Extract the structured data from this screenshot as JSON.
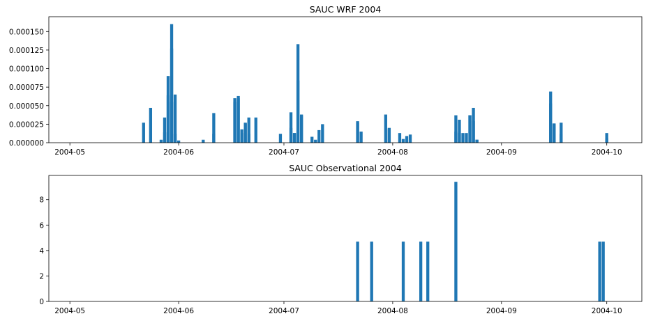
{
  "colors": {
    "bar": "#1f77b4",
    "axes": "#000000",
    "background": "#ffffff"
  },
  "chart_data": [
    {
      "type": "bar",
      "title": "SAUC WRF 2004",
      "xlabel": "",
      "ylabel": "",
      "grid": false,
      "xlim": [
        "2004-04-25",
        "2004-10-11"
      ],
      "ylim": [
        0,
        0.00017
      ],
      "xticks": [
        "2004-05",
        "2004-06",
        "2004-07",
        "2004-08",
        "2004-09",
        "2004-10"
      ],
      "xtick_dates": [
        "2004-05-01",
        "2004-06-01",
        "2004-07-01",
        "2004-08-01",
        "2004-09-01",
        "2004-10-01"
      ],
      "yticks": [
        "0.000000",
        "0.000025",
        "0.000050",
        "0.000075",
        "0.000100",
        "0.000125",
        "0.000150"
      ],
      "ytick_values": [
        0,
        2.5e-05,
        5e-05,
        7.5e-05,
        0.0001,
        0.000125,
        0.00015
      ],
      "series": [
        {
          "x": [
            "2004-05-22",
            "2004-05-24",
            "2004-05-27",
            "2004-05-28",
            "2004-05-28",
            "2004-05-29",
            "2004-05-29",
            "2004-05-30",
            "2004-05-30",
            "2004-05-30",
            "2004-05-31",
            "2004-05-31",
            "2004-06-01",
            "2004-06-08",
            "2004-06-11",
            "2004-06-11",
            "2004-06-17",
            "2004-06-17",
            "2004-06-18",
            "2004-06-18",
            "2004-06-19",
            "2004-06-19",
            "2004-06-20",
            "2004-06-20",
            "2004-06-21",
            "2004-06-21",
            "2004-06-23",
            "2004-06-30",
            "2004-07-03",
            "2004-07-03",
            "2004-07-04",
            "2004-07-04",
            "2004-07-05",
            "2004-07-05",
            "2004-07-06",
            "2004-07-06",
            "2004-07-09",
            "2004-07-10",
            "2004-07-11",
            "2004-07-12",
            "2004-07-22",
            "2004-07-22",
            "2004-07-23",
            "2004-07-30",
            "2004-07-31",
            "2004-07-31",
            "2004-08-03",
            "2004-08-04",
            "2004-08-05",
            "2004-08-06",
            "2004-08-19",
            "2004-08-19",
            "2004-08-20",
            "2004-08-20",
            "2004-08-21",
            "2004-08-22",
            "2004-08-23",
            "2004-08-23",
            "2004-08-24",
            "2004-08-24",
            "2004-08-25",
            "2004-08-25",
            "2004-09-15",
            "2004-09-15",
            "2004-09-16",
            "2004-09-16",
            "2004-09-18",
            "2004-09-18",
            "2004-10-01",
            "2004-10-01"
          ],
          "values": [
            2.7e-05,
            4.7e-05,
            4e-06,
            1.4e-05,
            3.4e-05,
            6.4e-05,
            9e-05,
            5.5e-05,
            0.00016,
            0.000127,
            6.5e-05,
            1.2e-05,
            3e-06,
            4e-06,
            1.2e-05,
            4e-05,
            6e-05,
            5.5e-05,
            6e-05,
            6.3e-05,
            1.3e-05,
            1.8e-05,
            2.6e-05,
            2.7e-05,
            3.4e-05,
            1.2e-05,
            3.4e-05,
            1.2e-05,
            2e-05,
            4.1e-05,
            1.3e-05,
            1.3e-05,
            0.000133,
            8.4e-05,
            3.8e-05,
            3.7e-05,
            8e-06,
            4e-06,
            1.7e-05,
            2.5e-05,
            2.7e-05,
            2.9e-05,
            1.5e-05,
            3.8e-05,
            1.8e-05,
            2e-05,
            1.3e-05,
            5e-06,
            9e-06,
            1.1e-05,
            1.5e-05,
            3.7e-05,
            3.1e-05,
            1.3e-05,
            1.3e-05,
            1.3e-05,
            3.7e-05,
            3.7e-05,
            4.7e-05,
            2.9e-05,
            4e-06,
            4e-06,
            5.3e-05,
            6.9e-05,
            2.6e-05,
            2.5e-05,
            2.7e-05,
            1.2e-05,
            1.3e-05,
            6e-06
          ]
        }
      ]
    },
    {
      "type": "bar",
      "title": "SAUC Observational 2004",
      "xlabel": "",
      "ylabel": "",
      "grid": false,
      "xlim": [
        "2004-04-25",
        "2004-10-11"
      ],
      "ylim": [
        0,
        9.9
      ],
      "xticks": [
        "2004-05",
        "2004-06",
        "2004-07",
        "2004-08",
        "2004-09",
        "2004-10"
      ],
      "xtick_dates": [
        "2004-05-01",
        "2004-06-01",
        "2004-07-01",
        "2004-08-01",
        "2004-09-01",
        "2004-10-01"
      ],
      "yticks": [
        "0",
        "2",
        "4",
        "6",
        "8"
      ],
      "ytick_values": [
        0,
        2,
        4,
        6,
        8
      ],
      "series": [
        {
          "x": [
            "2004-07-22",
            "2004-07-26",
            "2004-08-04",
            "2004-08-09",
            "2004-08-11",
            "2004-08-19",
            "2004-09-29",
            "2004-09-30"
          ],
          "values": [
            4.7,
            4.7,
            4.7,
            4.7,
            4.7,
            9.4,
            4.7,
            4.7
          ]
        }
      ]
    }
  ]
}
